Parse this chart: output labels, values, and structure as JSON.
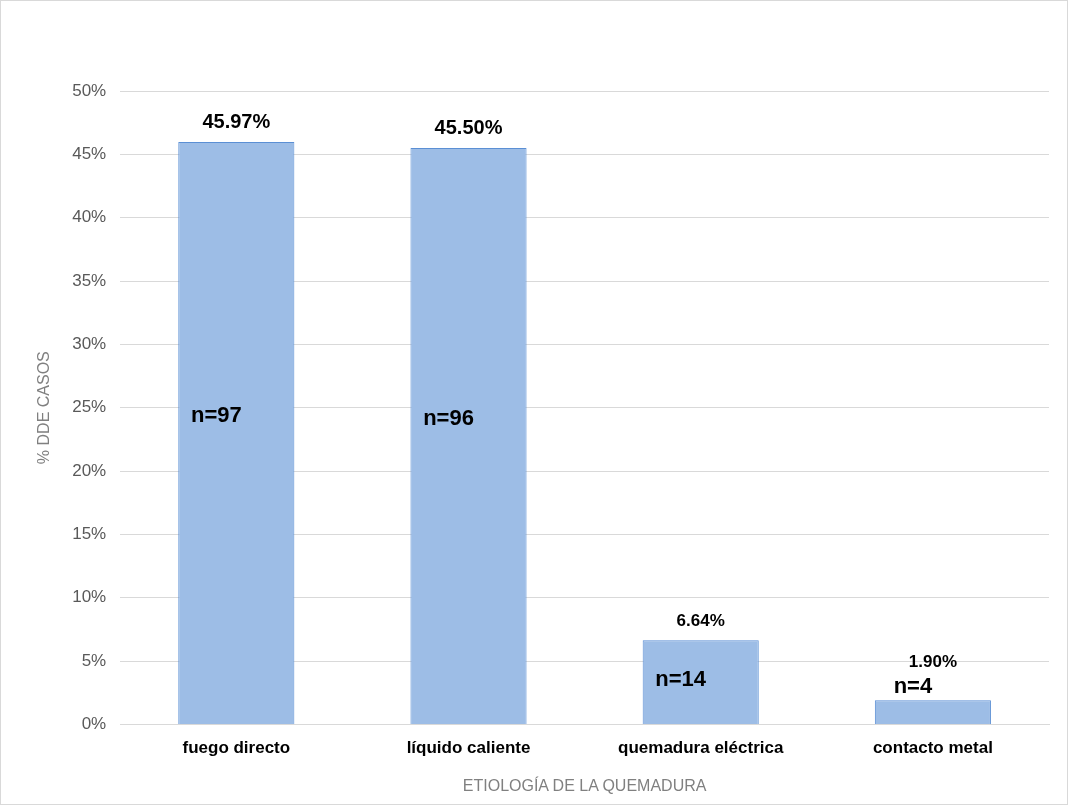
{
  "chart_data": {
    "type": "bar",
    "xlabel": "ETIOLOGÍA DE LA QUEMADURA",
    "ylabel": "% DDE CASOS",
    "categories": [
      "fuego directo",
      "líquido caliente",
      "quemadura eléctrica",
      "contacto metal"
    ],
    "values": [
      45.97,
      45.5,
      6.64,
      1.9
    ],
    "value_labels": [
      "45.97%",
      "45.50%",
      "6.64%",
      "1.90%"
    ],
    "color": "#9dbde6",
    "ylim": [
      0,
      50
    ],
    "yticks": [
      {
        "value": 0,
        "label": "0%"
      },
      {
        "value": 5,
        "label": "5%"
      },
      {
        "value": 10,
        "label": "10%"
      },
      {
        "value": 15,
        "label": "15%"
      },
      {
        "value": 20,
        "label": "20%"
      },
      {
        "value": 25,
        "label": "25%"
      },
      {
        "value": 30,
        "label": "30%"
      },
      {
        "value": 35,
        "label": "35%"
      },
      {
        "value": 40,
        "label": "40%"
      },
      {
        "value": 45,
        "label": "45%"
      },
      {
        "value": 50,
        "label": "50%"
      }
    ],
    "grid": "y",
    "annotations": [
      "n=97",
      "n=96",
      "n=14",
      "n=4"
    ]
  }
}
